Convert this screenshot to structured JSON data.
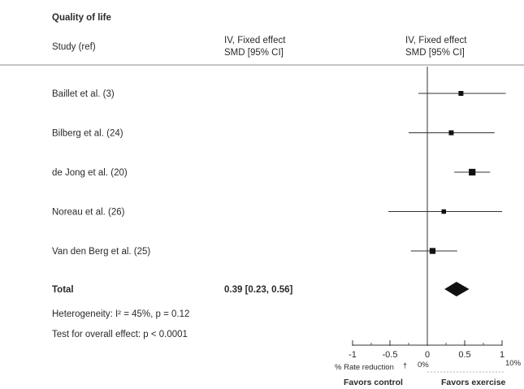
{
  "section_title": "Quality of life",
  "headers": {
    "study": "Study (ref)",
    "col2_line1": "IV, Fixed effect",
    "col2_line2": "SMD [95% CI]",
    "col3_line1": "IV, Fixed effect",
    "col3_line2": "SMD [95% CI]"
  },
  "footer": {
    "heterogeneity": "Heterogeneity: I² = 45%, p = 0.12",
    "overall": "Test for overall effect: p < 0.0001"
  },
  "secondary_axis": {
    "label": "% Rate reduction",
    "marker": "†",
    "start": "0%",
    "end": "10%"
  },
  "favors": {
    "left": "Favors control",
    "right": "Favors exercise"
  },
  "chart_data": {
    "type": "forest",
    "xlim": [
      -1,
      1
    ],
    "xticks": [
      -1,
      -0.5,
      0,
      0.5,
      1
    ],
    "xtick_labels": [
      "-1",
      "-0.5",
      "0",
      "0.5",
      "1"
    ],
    "null_line": 0,
    "studies": [
      {
        "label": "Baillet et al. (3)",
        "estimate": 0.45,
        "ci_low": -0.12,
        "ci_high": 1.05,
        "weight": 1
      },
      {
        "label": "Bilberg et al. (24)",
        "estimate": 0.32,
        "ci_low": -0.25,
        "ci_high": 0.9,
        "weight": 1
      },
      {
        "label": "de Jong et al. (20)",
        "estimate": 0.6,
        "ci_low": 0.36,
        "ci_high": 0.84,
        "weight": 3
      },
      {
        "label": "Noreau et al. (26)",
        "estimate": 0.22,
        "ci_low": -0.52,
        "ci_high": 1.0,
        "weight": 0.7
      },
      {
        "label": "Van den Berg et al. (25)",
        "estimate": 0.07,
        "ci_low": -0.22,
        "ci_high": 0.4,
        "weight": 2
      }
    ],
    "total": {
      "label": "Total",
      "text": "0.39 [0.23, 0.56]",
      "estimate": 0.39,
      "ci_low": 0.23,
      "ci_high": 0.56
    }
  }
}
